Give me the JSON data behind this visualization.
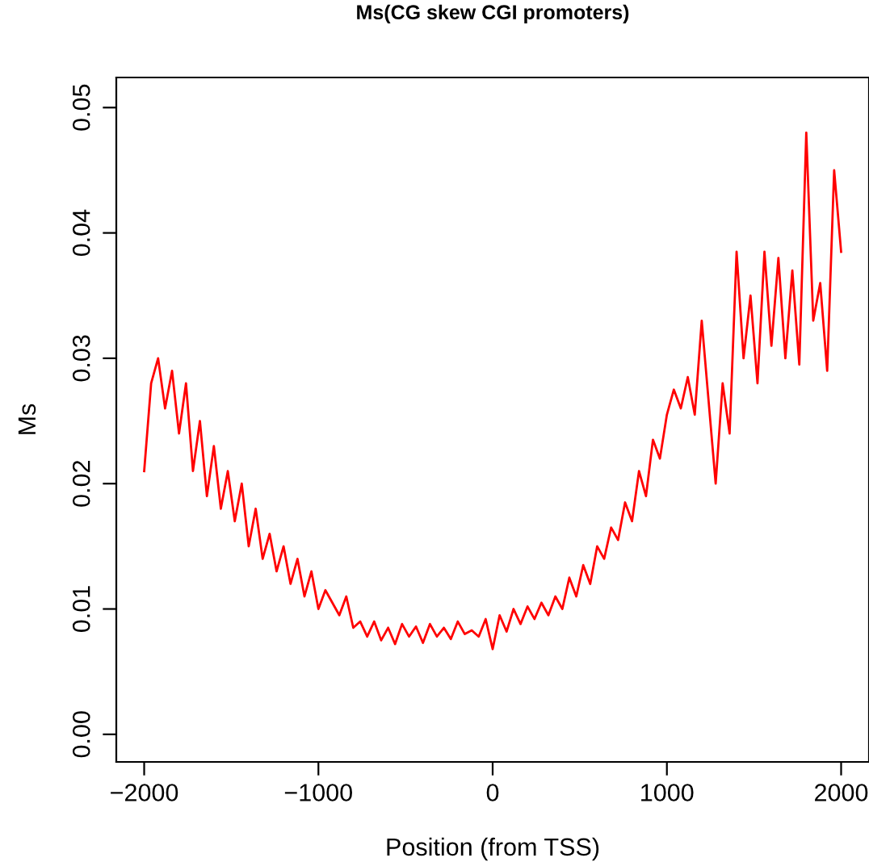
{
  "chart_data": {
    "type": "line",
    "title": "Ms(CG skew CGI promoters)",
    "xlabel": "Position (from TSS)",
    "ylabel": "Ms",
    "xlim": [
      -2160,
      2160
    ],
    "ylim": [
      -0.0022,
      0.0524
    ],
    "xticks": [
      {
        "value": -2000,
        "label": "−2000"
      },
      {
        "value": -1000,
        "label": "−1000"
      },
      0,
      1000,
      2000
    ],
    "yticks": [
      {
        "value": 0,
        "label": "0.00"
      },
      {
        "value": 0.01,
        "label": "0.01"
      },
      {
        "value": 0.02,
        "label": "0.02"
      },
      {
        "value": 0.03,
        "label": "0.03"
      },
      {
        "value": 0.04,
        "label": "0.04"
      },
      {
        "value": 0.05,
        "label": "0.05"
      }
    ],
    "grid": false,
    "legend": false,
    "marker": "none",
    "line_style": "solid",
    "x": [
      -2000,
      -1960,
      -1920,
      -1880,
      -1840,
      -1800,
      -1760,
      -1720,
      -1680,
      -1640,
      -1600,
      -1560,
      -1520,
      -1480,
      -1440,
      -1400,
      -1360,
      -1320,
      -1280,
      -1240,
      -1200,
      -1160,
      -1120,
      -1080,
      -1040,
      -1000,
      -960,
      -920,
      -880,
      -840,
      -800,
      -760,
      -720,
      -680,
      -640,
      -600,
      -560,
      -520,
      -480,
      -440,
      -400,
      -360,
      -320,
      -280,
      -240,
      -200,
      -160,
      -120,
      -80,
      -40,
      0,
      40,
      80,
      120,
      160,
      200,
      240,
      280,
      320,
      360,
      400,
      440,
      480,
      520,
      560,
      600,
      640,
      680,
      720,
      760,
      800,
      840,
      880,
      920,
      960,
      1000,
      1040,
      1080,
      1120,
      1160,
      1200,
      1240,
      1280,
      1320,
      1360,
      1400,
      1440,
      1480,
      1520,
      1560,
      1600,
      1640,
      1680,
      1720,
      1760,
      1800,
      1840,
      1880,
      1920,
      1960,
      2000
    ],
    "series": [
      {
        "color": "#ff0000",
        "values": [
          0.021,
          0.028,
          0.03,
          0.026,
          0.029,
          0.024,
          0.028,
          0.021,
          0.025,
          0.019,
          0.023,
          0.018,
          0.021,
          0.017,
          0.02,
          0.015,
          0.018,
          0.014,
          0.016,
          0.013,
          0.015,
          0.012,
          0.014,
          0.011,
          0.013,
          0.01,
          0.0115,
          0.0105,
          0.0095,
          0.011,
          0.0085,
          0.009,
          0.0078,
          0.009,
          0.0075,
          0.0085,
          0.0072,
          0.0088,
          0.0078,
          0.0086,
          0.0073,
          0.0088,
          0.0078,
          0.0085,
          0.0076,
          0.009,
          0.008,
          0.0083,
          0.0078,
          0.0092,
          0.0068,
          0.0095,
          0.0082,
          0.01,
          0.0088,
          0.0102,
          0.0092,
          0.0105,
          0.0095,
          0.011,
          0.01,
          0.0125,
          0.011,
          0.0135,
          0.012,
          0.015,
          0.014,
          0.0165,
          0.0155,
          0.0185,
          0.017,
          0.021,
          0.019,
          0.0235,
          0.022,
          0.0255,
          0.0275,
          0.026,
          0.0285,
          0.0255,
          0.033,
          0.0265,
          0.02,
          0.028,
          0.024,
          0.0385,
          0.03,
          0.035,
          0.028,
          0.0385,
          0.031,
          0.038,
          0.03,
          0.037,
          0.0295,
          0.048,
          0.033,
          0.036,
          0.029,
          0.045,
          0.0385
        ]
      }
    ]
  }
}
